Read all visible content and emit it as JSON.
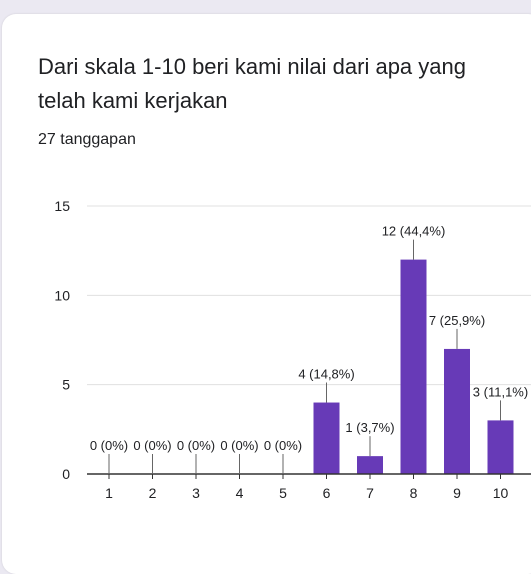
{
  "question": {
    "title": "Dari skala 1-10 beri kami nilai dari apa yang telah kami kerjakan",
    "response_count": "27 tanggapan"
  },
  "colors": {
    "bar": "#673ab7",
    "grid": "#e0e0e0",
    "axis": "#333333",
    "text": "#202124"
  },
  "chart_data": {
    "type": "bar",
    "title": "",
    "xlabel": "",
    "ylabel": "",
    "categories": [
      "1",
      "2",
      "3",
      "4",
      "5",
      "6",
      "7",
      "8",
      "9",
      "10"
    ],
    "values": [
      0,
      0,
      0,
      0,
      0,
      4,
      1,
      12,
      7,
      3
    ],
    "data_labels": [
      "0 (0%)",
      "0 (0%)",
      "0 (0%)",
      "0 (0%)",
      "0 (0%)",
      "4 (14,8%)",
      "1 (3,7%)",
      "12 (44,4%)",
      "7 (25,9%)",
      "3 (11,1%)"
    ],
    "yticks": [
      "0",
      "5",
      "10",
      "15"
    ],
    "ylim": [
      0,
      15
    ],
    "grid": true,
    "legend": "none"
  }
}
